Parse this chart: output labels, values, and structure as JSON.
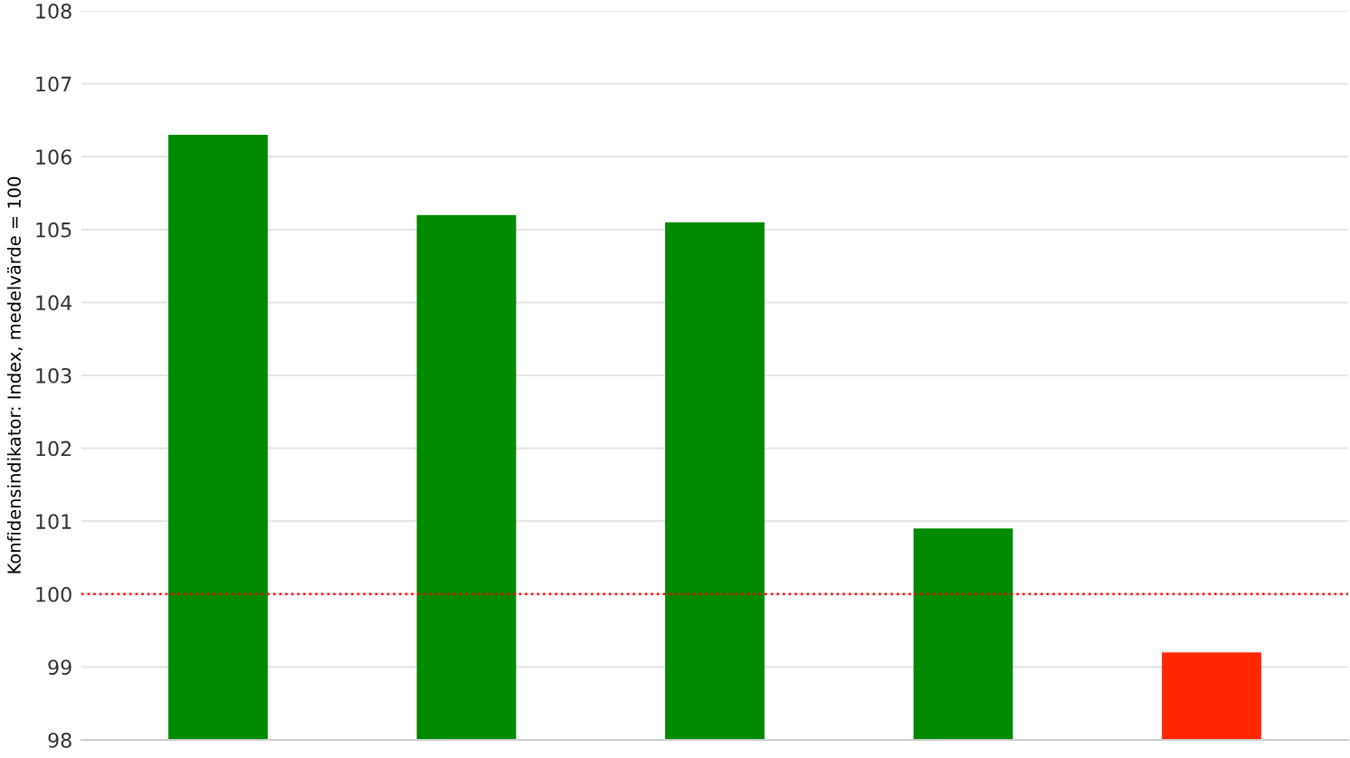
{
  "chart_data": {
    "type": "bar",
    "ylabel": "Konfidensindikator: Index, medelvärde = 100",
    "categories": [
      null,
      null,
      null,
      null,
      null
    ],
    "values": [
      106.3,
      105.2,
      105.1,
      100.9,
      99.2
    ],
    "colors": [
      "#008a00",
      "#008a00",
      "#008a00",
      "#008a00",
      "#ff2600"
    ],
    "ylim": [
      98,
      108
    ],
    "yticks": [
      98,
      99,
      100,
      101,
      102,
      103,
      104,
      105,
      106,
      107,
      108
    ],
    "grid": "y",
    "ref_lines": [
      {
        "axis": "y",
        "value": 100,
        "color": "#ff0000",
        "line_style": "dotted"
      }
    ]
  }
}
